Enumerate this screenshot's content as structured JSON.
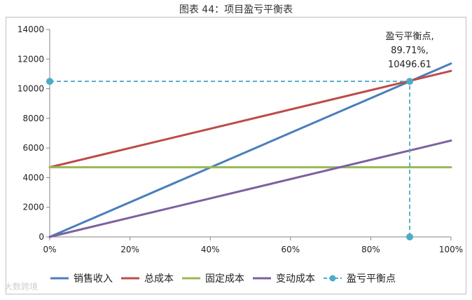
{
  "title": "图表 44：项目盈亏平衡表",
  "watermark": "大数跨境",
  "chart_data": {
    "type": "line",
    "x": [
      0,
      100
    ],
    "xlim": [
      0,
      100
    ],
    "ylim": [
      0,
      14000
    ],
    "x_ticks": [
      "0%",
      "20%",
      "40%",
      "60%",
      "80%",
      "100%"
    ],
    "x_tick_values": [
      0,
      20,
      40,
      60,
      80,
      100
    ],
    "y_ticks": [
      "0",
      "2000",
      "4000",
      "6000",
      "8000",
      "10000",
      "12000",
      "14000"
    ],
    "y_tick_values": [
      0,
      2000,
      4000,
      6000,
      8000,
      10000,
      12000,
      14000
    ],
    "grid": false,
    "legend_position": "bottom",
    "series": [
      {
        "name": "销售收入",
        "color": "#4a7ebb",
        "x": [
          0,
          100
        ],
        "y": [
          0,
          11700
        ]
      },
      {
        "name": "总成本",
        "color": "#be4b48",
        "x": [
          0,
          100
        ],
        "y": [
          4700,
          11200
        ]
      },
      {
        "name": "固定成本",
        "color": "#98b954",
        "x": [
          0,
          100
        ],
        "y": [
          4700,
          4700
        ]
      },
      {
        "name": "变动成本",
        "color": "#7d60a0",
        "x": [
          0,
          100
        ],
        "y": [
          0,
          6500
        ]
      }
    ],
    "breakeven": {
      "name": "盈亏平衡点",
      "color": "#4bacc6",
      "x": 89.71,
      "y": 10496.61,
      "label_lines": [
        "盈亏平衡点,",
        "89.71%,",
        "10496.61"
      ]
    }
  }
}
